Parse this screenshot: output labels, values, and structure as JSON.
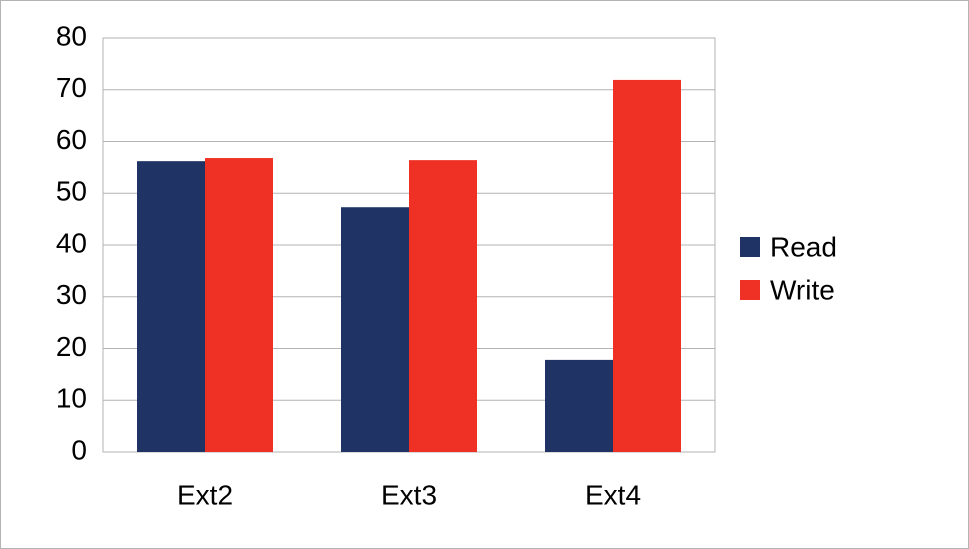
{
  "chart_data": {
    "type": "bar",
    "categories": [
      "Ext2",
      "Ext3",
      "Ext4"
    ],
    "series": [
      {
        "name": "Read",
        "color": "#1f3464",
        "values": [
          56.2,
          47.3,
          17.8
        ]
      },
      {
        "name": "Write",
        "color": "#ee3124",
        "values": [
          56.8,
          56.4,
          71.9
        ]
      }
    ],
    "ylim": [
      0,
      80
    ],
    "yticks": [
      0,
      10,
      20,
      30,
      40,
      50,
      60,
      70,
      80
    ],
    "grid": true,
    "legend": "right"
  }
}
